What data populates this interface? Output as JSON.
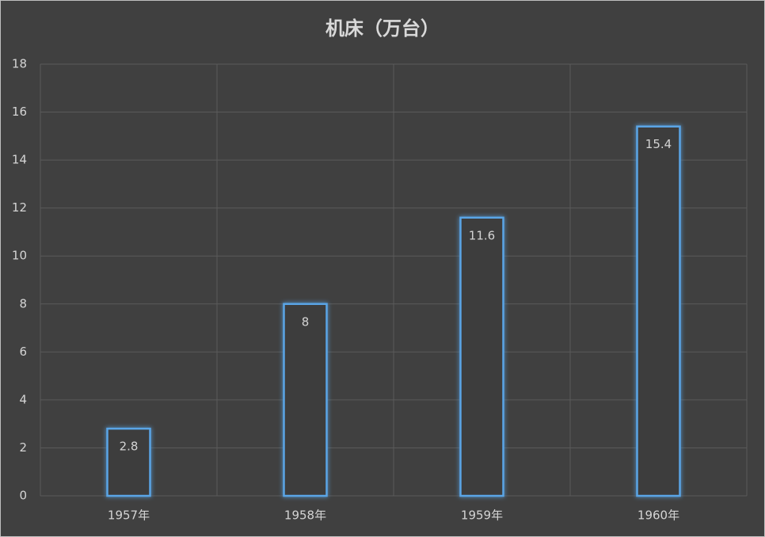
{
  "chart_data": {
    "type": "bar",
    "title": "机床（万台）",
    "categories": [
      "1957年",
      "1958年",
      "1959年",
      "1960年"
    ],
    "values": [
      2.8,
      8,
      11.6,
      15.4
    ],
    "color": "#5aa5e6",
    "ylim": [
      0,
      18
    ],
    "yticks": [
      0,
      2,
      4,
      6,
      8,
      10,
      12,
      14,
      16,
      18
    ],
    "grid": true
  }
}
